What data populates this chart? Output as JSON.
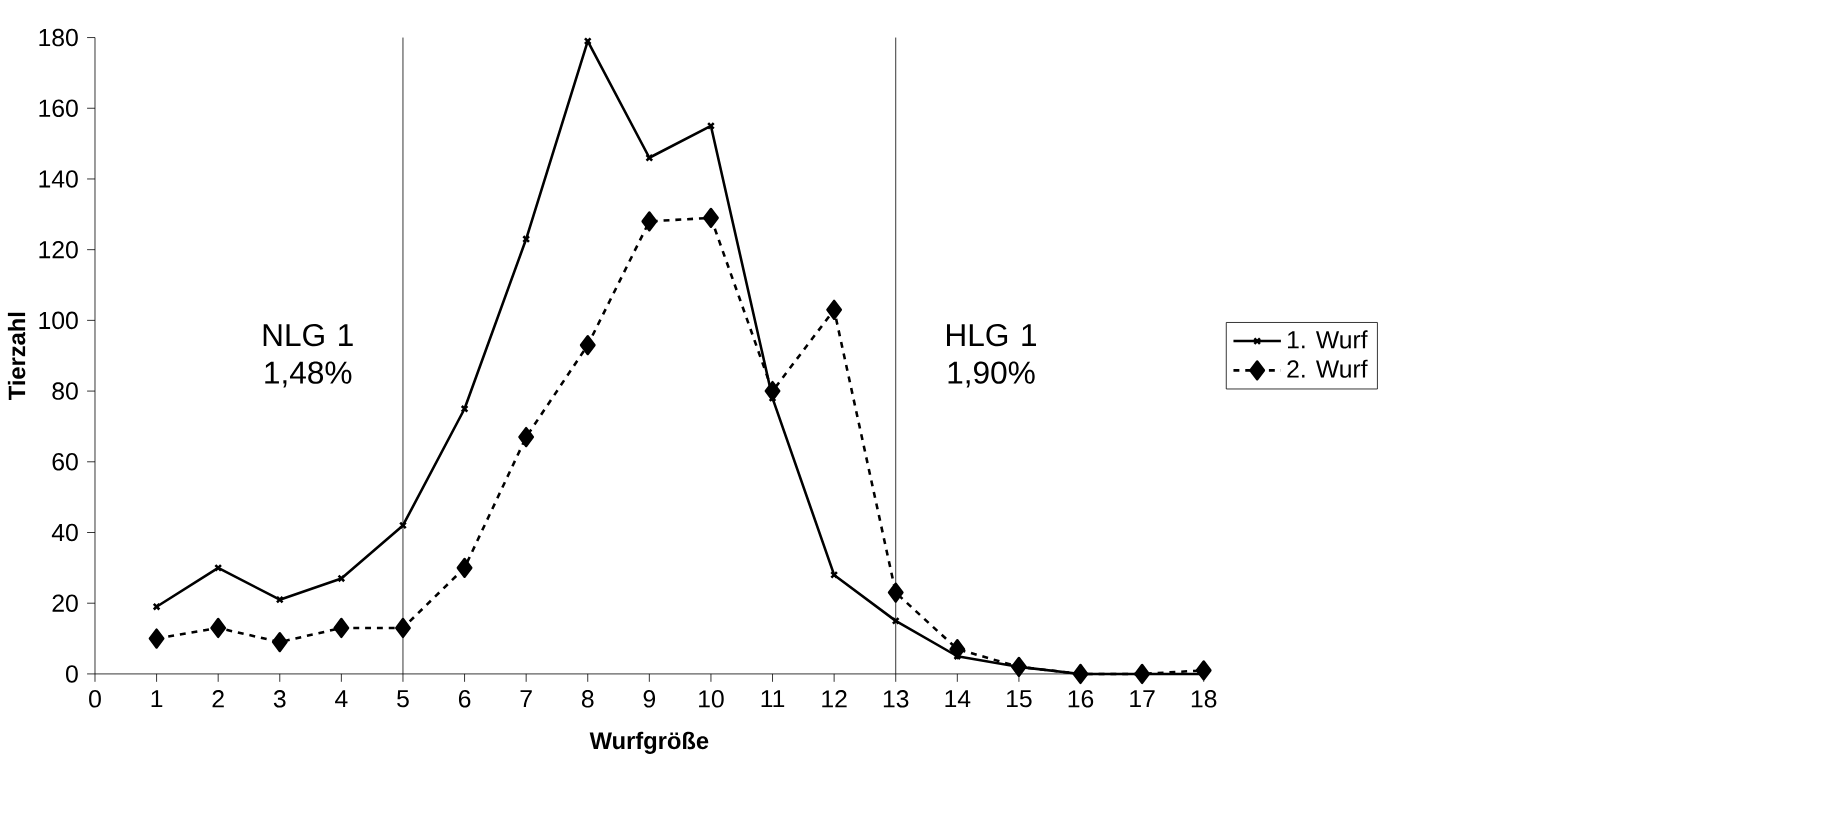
{
  "chart_data": {
    "type": "line",
    "xlabel": "Wurfgröße",
    "ylabel": "Tierzahl",
    "x": [
      1,
      2,
      3,
      4,
      5,
      6,
      7,
      8,
      9,
      10,
      11,
      12,
      13,
      14,
      15,
      16,
      17,
      18
    ],
    "series": [
      {
        "name": "1. Wurf",
        "color": "#000000",
        "line_style": "solid",
        "marker": "cross",
        "values": [
          19,
          30,
          21,
          27,
          42,
          75,
          123,
          179,
          146,
          155,
          78,
          28,
          15,
          5,
          2,
          0,
          0,
          0
        ]
      },
      {
        "name": "2. Wurf",
        "color": "#000000",
        "line_style": "dotted",
        "marker": "diamond",
        "values": [
          10,
          13,
          9,
          13,
          13,
          30,
          67,
          93,
          128,
          129,
          80,
          103,
          23,
          7,
          2,
          0,
          0,
          1
        ]
      }
    ],
    "xlim": [
      0,
      18
    ],
    "xticks": [
      0,
      1,
      2,
      3,
      4,
      5,
      6,
      7,
      8,
      9,
      10,
      11,
      12,
      13,
      14,
      15,
      16,
      17,
      18
    ],
    "ylim": [
      0,
      180
    ],
    "yticks": [
      0,
      20,
      40,
      60,
      80,
      100,
      120,
      140,
      160,
      180
    ],
    "ref_lines": [
      {
        "axis": "x",
        "value": 5,
        "label": "NLG 1 1,48%",
        "color": "#000000"
      },
      {
        "axis": "x",
        "value": 13,
        "label": "HLG 1 1,90%",
        "color": "#000000"
      }
    ],
    "grid": false,
    "legend": "right"
  }
}
